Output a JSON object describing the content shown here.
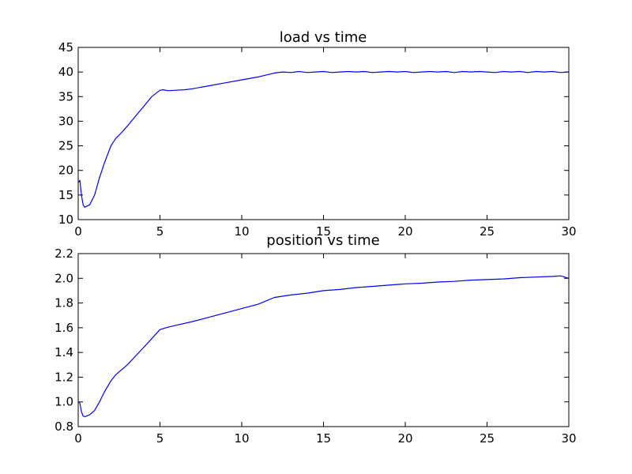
{
  "chart_data": [
    {
      "type": "line",
      "title": "load vs time",
      "xlabel": "",
      "ylabel": "",
      "xlim": [
        0,
        30
      ],
      "ylim": [
        10,
        45
      ],
      "xticks": [
        0,
        5,
        10,
        15,
        20,
        25,
        30
      ],
      "yticks": [
        10,
        15,
        20,
        25,
        30,
        35,
        40,
        45
      ],
      "xtick_labels": [
        "0",
        "5",
        "10",
        "15",
        "20",
        "25",
        "30"
      ],
      "ytick_labels": [
        "10",
        "15",
        "20",
        "25",
        "30",
        "35",
        "40",
        "45"
      ],
      "grid": false,
      "series": [
        {
          "color": "#0000ff",
          "x": [
            0,
            0.1,
            0.2,
            0.3,
            0.4,
            0.5,
            0.7,
            1.0,
            1.3,
            1.6,
            2.0,
            2.3,
            2.6,
            3.0,
            3.5,
            4.0,
            4.5,
            5.0,
            5.2,
            5.5,
            6.0,
            6.5,
            7.0,
            8.0,
            9.0,
            10.0,
            11.0,
            12.0,
            12.5,
            13.0,
            13.5,
            14.0,
            14.5,
            15.0,
            15.5,
            16.0,
            16.5,
            17.0,
            17.5,
            18.0,
            18.5,
            19.0,
            19.5,
            20.0,
            20.5,
            21.0,
            21.5,
            22.0,
            22.5,
            23.0,
            23.5,
            24.0,
            24.5,
            25.0,
            25.5,
            26.0,
            26.5,
            27.0,
            27.5,
            28.0,
            28.5,
            29.0,
            29.5,
            30.0
          ],
          "y": [
            17.5,
            18.0,
            15.0,
            13.0,
            12.5,
            12.7,
            13.0,
            15.0,
            18.5,
            21.5,
            25.0,
            26.5,
            27.5,
            29.0,
            31.0,
            33.0,
            35.0,
            36.3,
            36.4,
            36.2,
            36.3,
            36.4,
            36.6,
            37.2,
            37.8,
            38.4,
            39.0,
            39.8,
            40.0,
            39.9,
            40.1,
            39.9,
            40.0,
            40.1,
            39.9,
            40.0,
            40.1,
            40.0,
            40.1,
            39.9,
            40.0,
            40.1,
            40.0,
            40.1,
            39.9,
            40.0,
            40.1,
            40.0,
            40.1,
            39.9,
            40.1,
            40.0,
            40.1,
            40.0,
            39.9,
            40.1,
            40.0,
            40.1,
            39.9,
            40.1,
            40.0,
            40.1,
            39.9,
            40.0
          ]
        }
      ]
    },
    {
      "type": "line",
      "title": "position vs time",
      "xlabel": "",
      "ylabel": "",
      "xlim": [
        0,
        30
      ],
      "ylim": [
        0.8,
        2.2
      ],
      "xticks": [
        0,
        5,
        10,
        15,
        20,
        25,
        30
      ],
      "yticks": [
        0.8,
        1.0,
        1.2,
        1.4,
        1.6,
        1.8,
        2.0,
        2.2
      ],
      "xtick_labels": [
        "0",
        "5",
        "10",
        "15",
        "20",
        "25",
        "30"
      ],
      "ytick_labels": [
        "0.8",
        "1.0",
        "1.2",
        "1.4",
        "1.6",
        "1.8",
        "2.0",
        "2.2"
      ],
      "grid": false,
      "series": [
        {
          "color": "#0000ff",
          "x": [
            0,
            0.1,
            0.2,
            0.3,
            0.4,
            0.5,
            0.7,
            1.0,
            1.3,
            1.6,
            2.0,
            2.3,
            3.0,
            4.0,
            5.0,
            5.5,
            6.0,
            7.0,
            8.0,
            9.0,
            10.0,
            11.0,
            12.0,
            13.0,
            14.0,
            15.0,
            16.0,
            17.0,
            18.0,
            19.0,
            20.0,
            21.0,
            22.0,
            23.0,
            24.0,
            25.0,
            26.0,
            27.0,
            28.0,
            29.0,
            29.5,
            30.0
          ],
          "y": [
            1.0,
            0.99,
            0.92,
            0.885,
            0.88,
            0.885,
            0.895,
            0.93,
            1.0,
            1.08,
            1.17,
            1.22,
            1.3,
            1.44,
            1.585,
            1.605,
            1.62,
            1.65,
            1.685,
            1.72,
            1.755,
            1.79,
            1.845,
            1.865,
            1.88,
            1.9,
            1.91,
            1.925,
            1.935,
            1.945,
            1.955,
            1.96,
            1.97,
            1.975,
            1.985,
            1.99,
            1.995,
            2.005,
            2.01,
            2.015,
            2.02,
            2.0
          ]
        }
      ]
    }
  ]
}
